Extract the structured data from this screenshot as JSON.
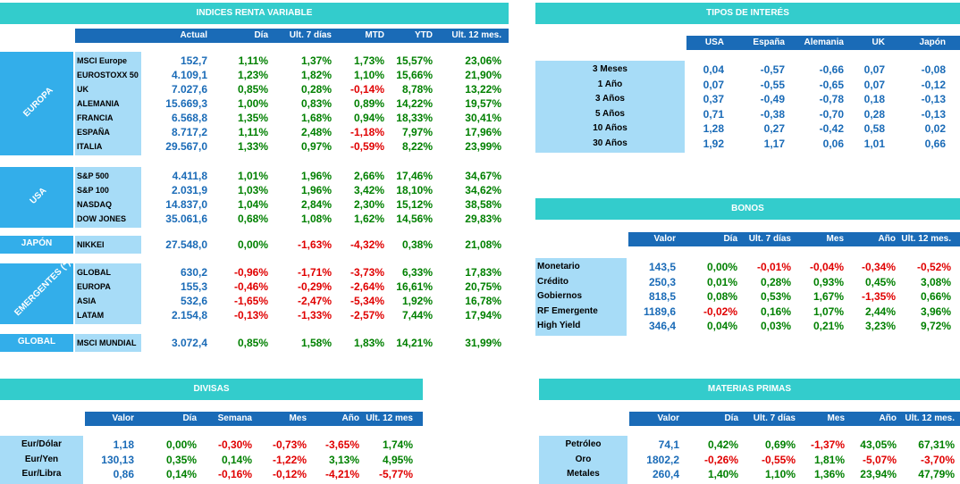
{
  "colors": {
    "banner": "#33CCCC",
    "header": "#1A6BB7",
    "label_bg": "#A7DCF7",
    "region_bg": "#33AEEA",
    "positive": "#008000",
    "negative": "#E00000",
    "value": "#1A6BB7"
  },
  "renta": {
    "title": "INDICES RENTA VARIABLE",
    "columns": [
      "Actual",
      "Día",
      "Ult. 7 días",
      "MTD",
      "YTD",
      "Ult. 12 mes."
    ],
    "groups": [
      {
        "region": "EUROPA",
        "rows": [
          {
            "name": "MSCI Europe",
            "values": [
              "152,7",
              "1,11%",
              "1,37%",
              "1,73%",
              "15,57%",
              "23,06%"
            ]
          },
          {
            "name": "EUROSTOXX 50",
            "values": [
              "4.109,1",
              "1,23%",
              "1,82%",
              "1,10%",
              "15,66%",
              "21,90%"
            ]
          },
          {
            "name": "UK",
            "values": [
              "7.027,6",
              "0,85%",
              "0,28%",
              "-0,14%",
              "8,78%",
              "13,22%"
            ]
          },
          {
            "name": "ALEMANIA",
            "values": [
              "15.669,3",
              "1,00%",
              "0,83%",
              "0,89%",
              "14,22%",
              "19,57%"
            ]
          },
          {
            "name": "FRANCIA",
            "values": [
              "6.568,8",
              "1,35%",
              "1,68%",
              "0,94%",
              "18,33%",
              "30,41%"
            ]
          },
          {
            "name": "ESPAÑA",
            "values": [
              "8.717,2",
              "1,11%",
              "2,48%",
              "-1,18%",
              "7,97%",
              "17,96%"
            ]
          },
          {
            "name": "ITALIA",
            "values": [
              "29.567,0",
              "1,33%",
              "0,97%",
              "-0,59%",
              "8,22%",
              "23,99%"
            ]
          }
        ]
      },
      {
        "region": "USA",
        "rows": [
          {
            "name": "S&P 500",
            "values": [
              "4.411,8",
              "1,01%",
              "1,96%",
              "2,66%",
              "17,46%",
              "34,67%"
            ]
          },
          {
            "name": "S&P 100",
            "values": [
              "2.031,9",
              "1,03%",
              "1,96%",
              "3,42%",
              "18,10%",
              "34,62%"
            ]
          },
          {
            "name": "NASDAQ",
            "values": [
              "14.837,0",
              "1,04%",
              "2,84%",
              "2,30%",
              "15,12%",
              "38,58%"
            ]
          },
          {
            "name": "DOW JONES",
            "values": [
              "35.061,6",
              "0,68%",
              "1,08%",
              "1,62%",
              "14,56%",
              "29,83%"
            ]
          }
        ]
      },
      {
        "region": "JAPÓN",
        "rows": [
          {
            "name": "NIKKEI",
            "values": [
              "27.548,0",
              "0,00%",
              "-1,63%",
              "-4,32%",
              "0,38%",
              "21,08%"
            ]
          }
        ]
      },
      {
        "region": "EMERGENTES (*)",
        "rows": [
          {
            "name": "GLOBAL",
            "values": [
              "630,2",
              "-0,96%",
              "-1,71%",
              "-3,73%",
              "6,33%",
              "17,83%"
            ]
          },
          {
            "name": "EUROPA",
            "values": [
              "155,3",
              "-0,46%",
              "-0,29%",
              "-2,64%",
              "16,61%",
              "20,75%"
            ]
          },
          {
            "name": "ASIA",
            "values": [
              "532,6",
              "-1,65%",
              "-2,47%",
              "-5,34%",
              "1,92%",
              "16,78%"
            ]
          },
          {
            "name": "LATAM",
            "values": [
              "2.154,8",
              "-0,13%",
              "-1,33%",
              "-2,57%",
              "7,44%",
              "17,94%"
            ]
          }
        ]
      },
      {
        "region": "GLOBAL",
        "rows": [
          {
            "name": "MSCI MUNDIAL",
            "values": [
              "3.072,4",
              "0,85%",
              "1,58%",
              "1,83%",
              "14,21%",
              "31,99%"
            ]
          }
        ]
      }
    ]
  },
  "tipos": {
    "title": "TIPOS DE INTERÉS",
    "columns": [
      "USA",
      "España",
      "Alemania",
      "UK",
      "Japón"
    ],
    "rows": [
      {
        "name": "3 Meses",
        "values": [
          "0,04",
          "-0,57",
          "-0,66",
          "0,07",
          "-0,08"
        ]
      },
      {
        "name": "1 Año",
        "values": [
          "0,07",
          "-0,55",
          "-0,65",
          "0,07",
          "-0,12"
        ]
      },
      {
        "name": "3 Años",
        "values": [
          "0,37",
          "-0,49",
          "-0,78",
          "0,18",
          "-0,13"
        ]
      },
      {
        "name": "5 Años",
        "values": [
          "0,71",
          "-0,38",
          "-0,70",
          "0,28",
          "-0,13"
        ]
      },
      {
        "name": "10 Años",
        "values": [
          "1,28",
          "0,27",
          "-0,42",
          "0,58",
          "0,02"
        ]
      },
      {
        "name": "30 Años",
        "values": [
          "1,92",
          "1,17",
          "0,06",
          "1,01",
          "0,66"
        ]
      }
    ]
  },
  "bonos": {
    "title": "BONOS",
    "columns": [
      "Valor",
      "Día",
      "Ult. 7 días",
      "Mes",
      "Año",
      "Ult. 12 mes."
    ],
    "rows": [
      {
        "name": "Monetario",
        "values": [
          "143,5",
          "0,00%",
          "-0,01%",
          "-0,04%",
          "-0,34%",
          "-0,52%"
        ]
      },
      {
        "name": "Crédito",
        "values": [
          "250,3",
          "0,01%",
          "0,28%",
          "0,93%",
          "0,45%",
          "3,08%"
        ]
      },
      {
        "name": "Gobiernos",
        "values": [
          "818,5",
          "0,08%",
          "0,53%",
          "1,67%",
          "-1,35%",
          "0,66%"
        ]
      },
      {
        "name": "RF Emergente",
        "values": [
          "1189,6",
          "-0,02%",
          "0,16%",
          "1,07%",
          "2,44%",
          "3,96%"
        ]
      },
      {
        "name": "High Yield",
        "values": [
          "346,4",
          "0,04%",
          "0,03%",
          "0,21%",
          "3,23%",
          "9,72%"
        ]
      }
    ]
  },
  "divisas": {
    "title": "DIVISAS",
    "columns": [
      "Valor",
      "Día",
      "Semana",
      "Mes",
      "Año",
      "Ult. 12 mes"
    ],
    "rows": [
      {
        "name": "Eur/Dólar",
        "values": [
          "1,18",
          "0,00%",
          "-0,30%",
          "-0,73%",
          "-3,65%",
          "1,74%"
        ]
      },
      {
        "name": "Eur/Yen",
        "values": [
          "130,13",
          "0,35%",
          "0,14%",
          "-1,22%",
          "3,13%",
          "4,95%"
        ]
      },
      {
        "name": "Eur/Libra",
        "values": [
          "0,86",
          "0,14%",
          "-0,16%",
          "-0,12%",
          "-4,21%",
          "-5,77%"
        ]
      }
    ]
  },
  "materias": {
    "title": "MATERIAS PRIMAS",
    "columns": [
      "Valor",
      "Día",
      "Ult. 7 días",
      "Mes",
      "Año",
      "Ult. 12 mes."
    ],
    "rows": [
      {
        "name": "Petróleo",
        "values": [
          "74,1",
          "0,42%",
          "0,69%",
          "-1,37%",
          "43,05%",
          "67,31%"
        ]
      },
      {
        "name": "Oro",
        "values": [
          "1802,2",
          "-0,26%",
          "-0,55%",
          "1,81%",
          "-5,07%",
          "-3,70%"
        ]
      },
      {
        "name": "Metales",
        "values": [
          "260,4",
          "1,40%",
          "1,10%",
          "1,36%",
          "23,94%",
          "47,79%"
        ]
      }
    ]
  }
}
